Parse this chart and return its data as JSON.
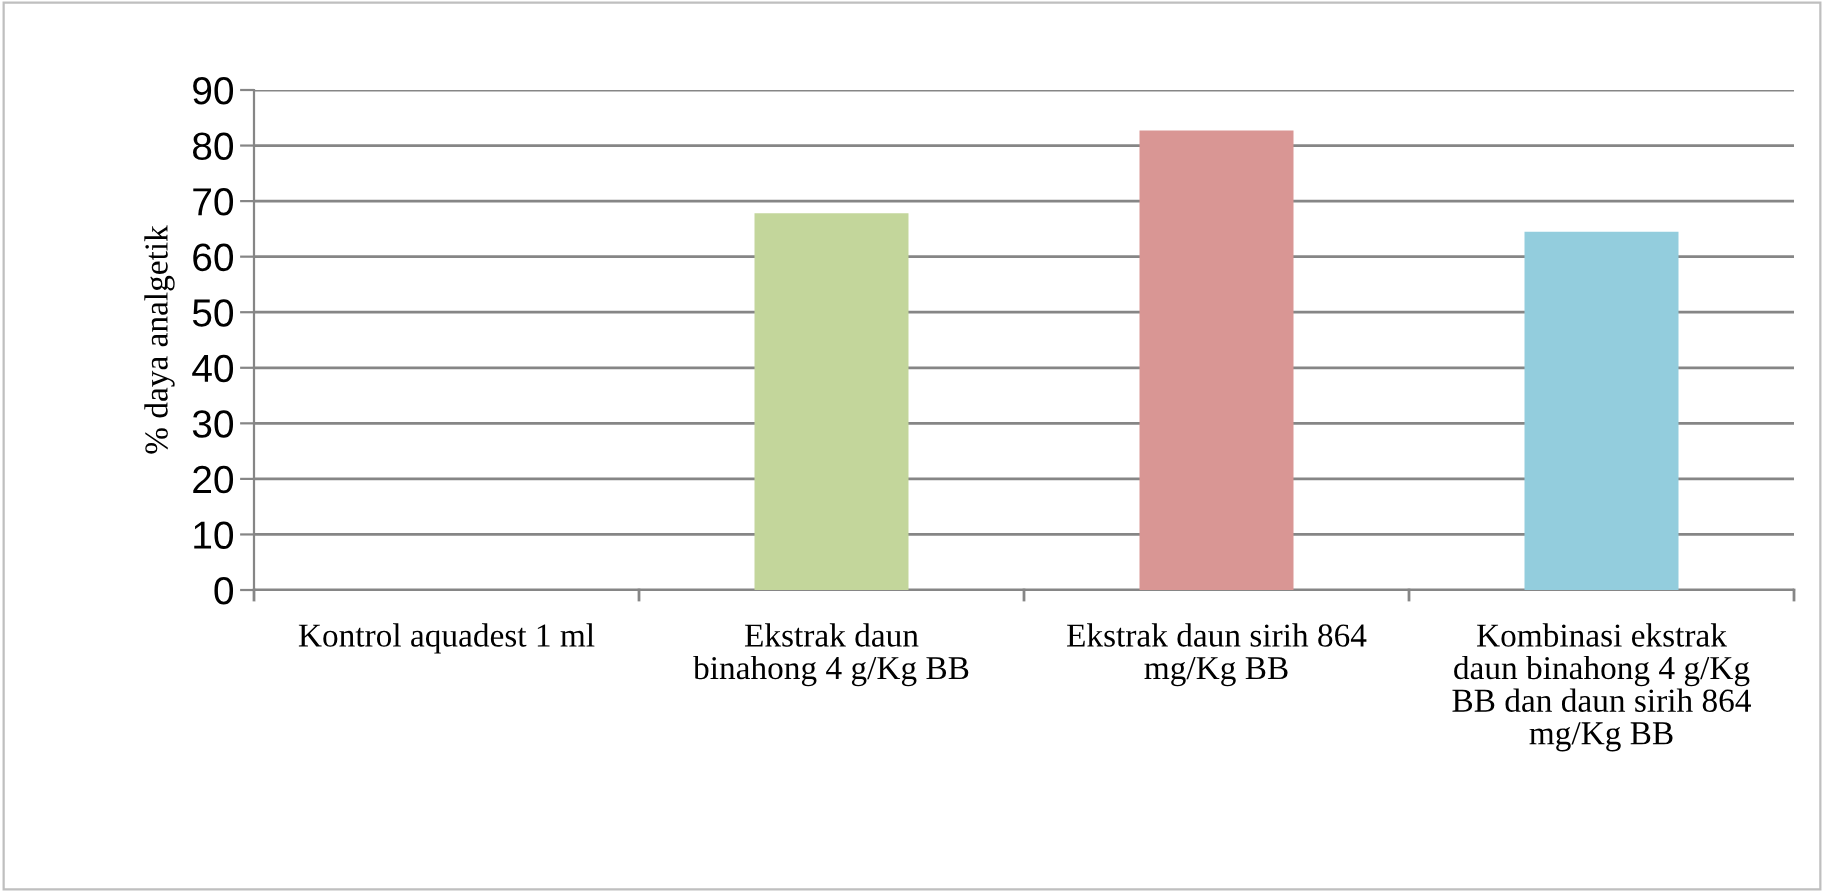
{
  "chart_data": {
    "type": "bar",
    "ylabel": "% daya analgetik",
    "categories": [
      "Kontrol aquadest 1 ml",
      "Ekstrak daun\nbinahong 4 g/Kg BB",
      "Ekstrak daun sirih 864\nmg/Kg BB",
      "Kombinasi ekstrak\ndaun binahong 4 g/Kg\nBB dan daun sirih 864\nmg/Kg BB"
    ],
    "values": [
      0,
      67.8,
      82.7,
      64.5
    ],
    "colors": [
      "#c0504d",
      "#c3d69b",
      "#d99694",
      "#93cddd"
    ],
    "ylim": [
      0,
      90
    ],
    "yticks": [
      0,
      10,
      20,
      30,
      40,
      50,
      60,
      70,
      80,
      90
    ],
    "grid": "y",
    "legend": false
  }
}
